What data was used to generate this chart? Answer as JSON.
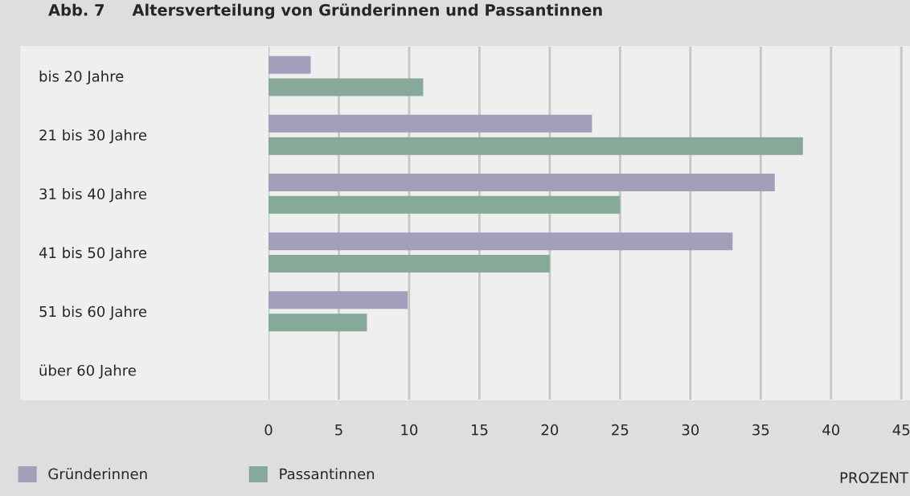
{
  "chart_data": {
    "type": "bar",
    "orientation": "horizontal",
    "title": "Abb. 7     Altersverteilung von Gründerinnen und Passantinnen",
    "xlabel": "PROZENT",
    "categories": [
      "bis 20 Jahre",
      "21 bis 30 Jahre",
      "31 bis 40 Jahre",
      "41 bis 50 Jahre",
      "51 bis 60 Jahre",
      "über 60 Jahre"
    ],
    "series": [
      {
        "name": "Gründerinnen",
        "color": "#a29fba",
        "values": [
          3,
          23,
          36,
          33,
          9.9,
          null
        ]
      },
      {
        "name": "Passantinnen",
        "color": "#86a99a",
        "values": [
          11,
          38,
          25,
          20,
          7,
          null
        ]
      }
    ],
    "xlim": [
      0,
      45.5
    ],
    "xticks": [
      0,
      5,
      10,
      15,
      20,
      25,
      30,
      35,
      40,
      45
    ],
    "grid": "x",
    "legend": "bottom left"
  }
}
